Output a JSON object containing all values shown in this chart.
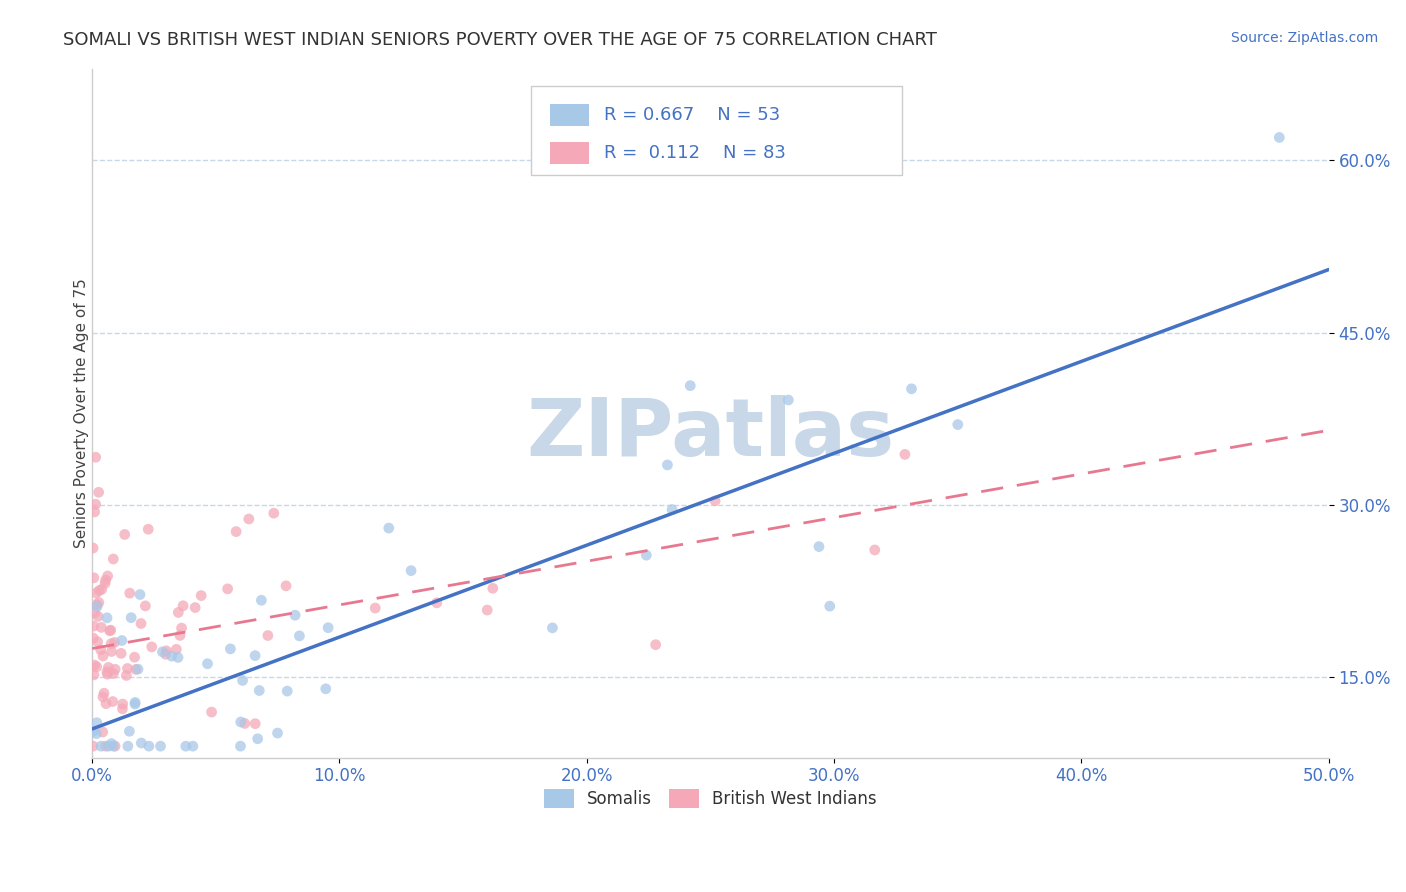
{
  "title": "SOMALI VS BRITISH WEST INDIAN SENIORS POVERTY OVER THE AGE OF 75 CORRELATION CHART",
  "source": "Source: ZipAtlas.com",
  "ylabel": "Seniors Poverty Over the Age of 75",
  "xlim": [
    0.0,
    0.5
  ],
  "ylim": [
    0.08,
    0.68
  ],
  "somali_R": 0.667,
  "somali_N": 53,
  "bwi_R": 0.112,
  "bwi_N": 83,
  "somali_color": "#a8c8e8",
  "bwi_color": "#f4a8b8",
  "somali_line_color": "#4472c4",
  "bwi_line_color": "#e87890",
  "axis_color": "#4472c4",
  "grid_color": "#c8d8e8",
  "background_color": "#ffffff",
  "watermark": "ZIPatlas",
  "watermark_color": "#c8d8e8",
  "title_fontsize": 13,
  "tick_fontsize": 12,
  "source_fontsize": 10,
  "ytick_vals": [
    0.15,
    0.3,
    0.45,
    0.6
  ],
  "xtick_vals": [
    0.0,
    0.1,
    0.2,
    0.3,
    0.4,
    0.5
  ],
  "somali_line_x": [
    0.0,
    0.5
  ],
  "somali_line_y": [
    0.105,
    0.505
  ],
  "bwi_line_x": [
    0.0,
    0.5
  ],
  "bwi_line_y": [
    0.175,
    0.365
  ]
}
